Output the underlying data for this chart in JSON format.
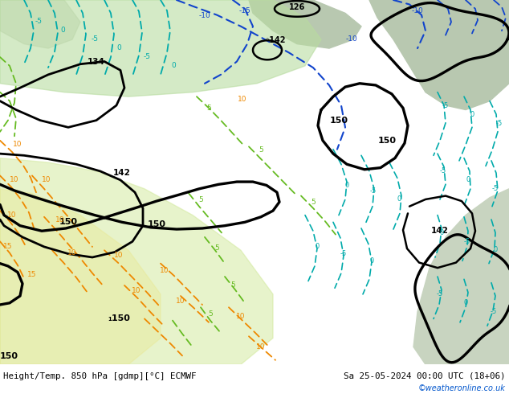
{
  "title_left": "Height/Temp. 850 hPa [gdmp][°C] ECMWF",
  "title_right": "Sa 25-05-2024 00:00 UTC (18+06)",
  "watermark": "©weatheronline.co.uk",
  "figsize": [
    6.34,
    4.9
  ],
  "dpi": 100,
  "bg_white": "#ffffff",
  "text_black": "#000000",
  "text_blue": "#0055cc",
  "watermark_color": "#0055cc",
  "map_green_light": "#c8e8a0",
  "map_green_mid": "#a8d880",
  "map_gray": "#b8c8b0",
  "map_gray2": "#c8d4c0",
  "contour_black_lw": 2.2,
  "contour_thin_lw": 1.4,
  "temp_blue_color": "#1144cc",
  "temp_cyan_color": "#00aaaa",
  "temp_green_color": "#66bb22",
  "temp_orange_color": "#ee8800",
  "temp_red_color": "#cc2200",
  "bottom_bar_height": 0.075
}
